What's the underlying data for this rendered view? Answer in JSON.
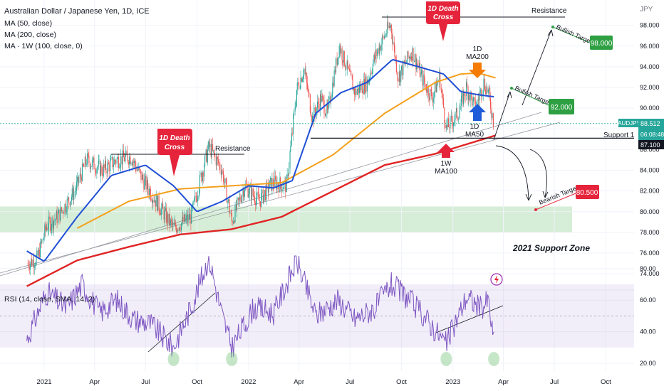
{
  "header": {
    "title": "Australian Dollar / Japanese Yen, 1D, ICE",
    "ma50": "MA (50, close)",
    "ma200": "MA (200, close)",
    "ma1w": "MA · 1W (100, close, 0)"
  },
  "rsi_label": "RSI (14, close, SMA, 14, 2)",
  "currency": "JPY",
  "price_tag": {
    "symbol": "AUDJPY",
    "price": "88.512",
    "countdown": "06:08:48"
  },
  "support_tag": {
    "value": "87.100",
    "label": "Support 1"
  },
  "annotations": {
    "death_cross_1": {
      "line1": "1D Death",
      "line2": "Cross"
    },
    "death_cross_2": {
      "line1": "1D Death",
      "line2": "Cross"
    },
    "resistance_1": "Resistance",
    "resistance_2": "Resistance",
    "ma200_label": {
      "line1": "1D",
      "line2": "MA200"
    },
    "ma50_label": {
      "line1": "1D",
      "line2": "MA50"
    },
    "ma100w_label": {
      "line1": "1W",
      "line2": "MA100"
    },
    "bullish_target_1": "Bullish Target 1",
    "bullish_target_2": "Bullish Target 2",
    "bearish_target": "Bearish Target",
    "support_zone": "2021 Support Zone"
  },
  "target_boxes": {
    "t98": "98.000",
    "t92": "92.000",
    "t80": "80.500"
  },
  "colors": {
    "ma50": "#1f4fd6",
    "ma200": "#f5a01c",
    "ma100w": "#e02424",
    "rsi": "#7e57c2",
    "bull": "#2ea043",
    "bear": "#e5243b",
    "candle_up": "#26a69a",
    "candle_down": "#ef5350"
  },
  "chart_data": [
    {
      "type": "candlestick",
      "title": "Australian Dollar / Japanese Yen, 1D, ICE",
      "x_tick_labels": [
        "2021",
        "Apr",
        "Jul",
        "Oct",
        "2022",
        "Apr",
        "Jul",
        "Oct",
        "2023",
        "Apr",
        "Jul",
        "Oct"
      ],
      "y_tick_labels": [
        "74.000",
        "76.000",
        "78.000",
        "80.000",
        "82.000",
        "84.000",
        "86.000",
        "88.000",
        "90.000",
        "92.000",
        "94.000",
        "96.000",
        "98.000"
      ],
      "ylim": [
        72.5,
        99.5
      ],
      "key_levels": {
        "resistance": 98.8,
        "support_1": 87.1,
        "support_zone_2021": [
          78.0,
          80.5
        ]
      },
      "targets": {
        "bullish_1": 92.0,
        "bullish_2": 98.0,
        "bearish": 80.5
      },
      "price_anchors": [
        [
          "2020-12-03",
          75.0
        ],
        [
          "2020-12-20",
          75.5
        ],
        [
          "2021-01-05",
          78.6
        ],
        [
          "2021-01-25",
          79.5
        ],
        [
          "2021-02-25",
          82.0
        ],
        [
          "2021-03-18",
          85.0
        ],
        [
          "2021-04-15",
          84.0
        ],
        [
          "2021-05-10",
          85.0
        ],
        [
          "2021-06-05",
          85.3
        ],
        [
          "2021-06-25",
          83.2
        ],
        [
          "2021-07-20",
          81.0
        ],
        [
          "2021-08-20",
          78.4
        ],
        [
          "2021-09-20",
          79.5
        ],
        [
          "2021-10-22",
          86.3
        ],
        [
          "2021-11-15",
          84.0
        ],
        [
          "2021-12-02",
          79.0
        ],
        [
          "2021-12-25",
          82.5
        ],
        [
          "2022-01-20",
          81.0
        ],
        [
          "2022-02-12",
          82.8
        ],
        [
          "2022-03-10",
          82.5
        ],
        [
          "2022-03-28",
          91.8
        ],
        [
          "2022-04-10",
          93.8
        ],
        [
          "2022-04-25",
          89.0
        ],
        [
          "2022-05-10",
          91.0
        ],
        [
          "2022-05-22",
          89.5
        ],
        [
          "2022-06-12",
          96.0
        ],
        [
          "2022-06-25",
          94.0
        ],
        [
          "2022-07-10",
          91.5
        ],
        [
          "2022-08-01",
          92.5
        ],
        [
          "2022-08-15",
          95.0
        ],
        [
          "2022-09-05",
          97.5
        ],
        [
          "2022-09-12",
          98.0
        ],
        [
          "2022-09-25",
          93.0
        ],
        [
          "2022-10-20",
          95.5
        ],
        [
          "2022-11-10",
          92.5
        ],
        [
          "2022-11-25",
          91.0
        ],
        [
          "2022-12-08",
          93.0
        ],
        [
          "2022-12-20",
          88.0
        ],
        [
          "2023-01-10",
          89.5
        ],
        [
          "2023-01-25",
          92.0
        ],
        [
          "2023-02-10",
          90.0
        ],
        [
          "2023-02-25",
          92.5
        ],
        [
          "2023-03-05",
          91.5
        ],
        [
          "2023-03-15",
          88.5
        ]
      ]
    },
    {
      "type": "line",
      "title": "MA (50, close)",
      "x": [
        "2020-12-01",
        "2021-01-01",
        "2021-03-01",
        "2021-05-01",
        "2021-07-01",
        "2021-08-20",
        "2021-10-01",
        "2021-11-15",
        "2022-01-01",
        "2022-02-15",
        "2022-03-20",
        "2022-05-01",
        "2022-06-15",
        "2022-08-01",
        "2022-09-15",
        "2022-11-01",
        "2022-12-15",
        "2023-01-15",
        "2023-02-15",
        "2023-03-15"
      ],
      "y": [
        76.2,
        75.2,
        79.5,
        83.5,
        84.5,
        82.5,
        80.0,
        81.0,
        82.5,
        82.3,
        83.0,
        89.5,
        91.5,
        92.5,
        94.7,
        94.0,
        93.3,
        91.6,
        91.3,
        91.1
      ]
    },
    {
      "type": "line",
      "title": "MA (200, close)",
      "x": [
        "2021-03-01",
        "2021-06-01",
        "2021-09-01",
        "2021-12-01",
        "2022-03-01",
        "2022-06-01",
        "2022-09-01",
        "2022-12-01",
        "2023-01-15",
        "2023-02-15",
        "2023-03-20"
      ],
      "y": [
        78.4,
        81.0,
        82.2,
        82.5,
        82.8,
        85.5,
        89.5,
        92.5,
        93.3,
        93.4,
        92.9
      ]
    },
    {
      "type": "line",
      "title": "MA · 1W (100, close, 0)",
      "x": [
        "2020-12-01",
        "2021-03-01",
        "2021-06-01",
        "2021-09-01",
        "2021-12-01",
        "2022-03-01",
        "2022-06-01",
        "2022-09-01",
        "2022-12-01",
        "2023-03-20"
      ],
      "y": [
        72.8,
        75.3,
        76.6,
        77.8,
        78.3,
        79.5,
        82.0,
        84.5,
        85.6,
        87.4
      ]
    },
    {
      "type": "line",
      "title": "RSI (14, close, SMA, 14, 2)",
      "y_tick_labels": [
        "20.00",
        "40.00",
        "60.00",
        "80.00"
      ],
      "ylim": [
        20,
        90
      ],
      "band": [
        30,
        70
      ],
      "x": [
        "2020-12-01",
        "2021-01-05",
        "2021-02-10",
        "2021-03-10",
        "2021-04-10",
        "2021-05-10",
        "2021-06-10",
        "2021-07-10",
        "2021-08-20",
        "2021-09-20",
        "2021-10-22",
        "2021-11-15",
        "2021-12-02",
        "2022-01-10",
        "2022-02-15",
        "2022-03-28",
        "2022-05-01",
        "2022-06-10",
        "2022-07-10",
        "2022-08-15",
        "2022-09-12",
        "2022-10-10",
        "2022-11-10",
        "2022-12-20",
        "2023-01-25",
        "2023-02-20",
        "2023-03-05",
        "2023-03-15"
      ],
      "y": [
        35,
        65,
        55,
        70,
        52,
        60,
        48,
        45,
        30,
        55,
        87,
        50,
        30,
        55,
        52,
        85,
        50,
        60,
        48,
        55,
        70,
        62,
        50,
        32,
        62,
        55,
        60,
        33
      ]
    }
  ]
}
